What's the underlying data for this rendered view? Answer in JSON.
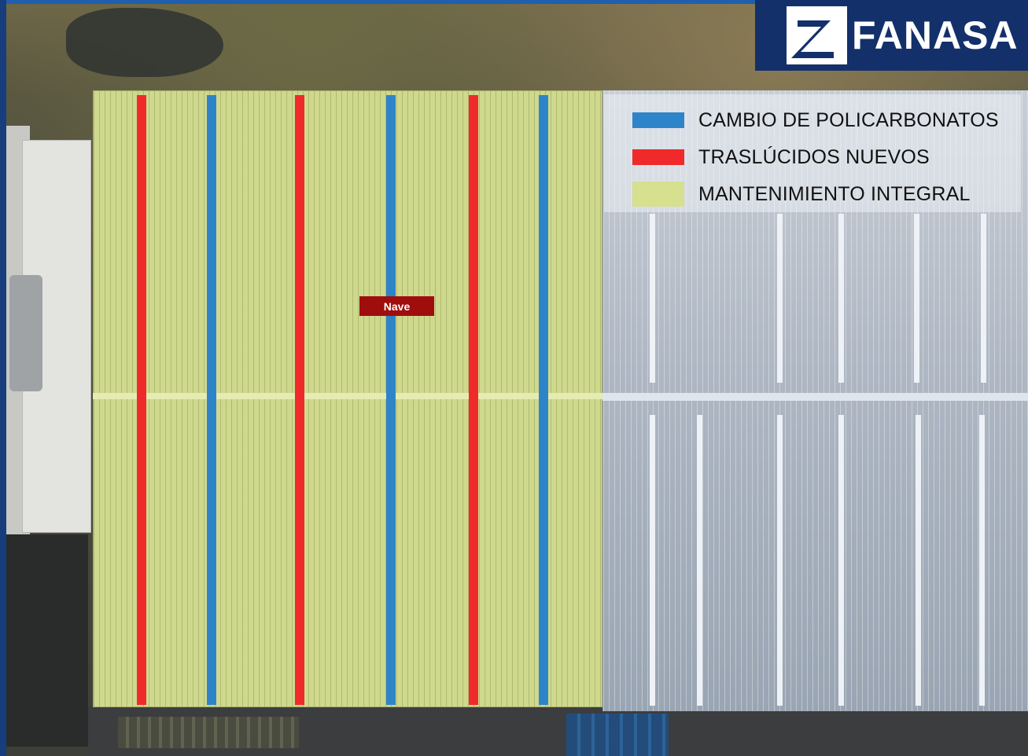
{
  "logo": {
    "text": "FANASA"
  },
  "legend": {
    "items": [
      {
        "label": "CAMBIO DE POLICARBONATOS",
        "color": "#2e84c8"
      },
      {
        "label": "TRASLÚCIDOS NUEVOS",
        "color": "#f02a2a"
      },
      {
        "label": "MANTENIMIENTO INTEGRAL",
        "color": "#d6e08e"
      }
    ]
  },
  "map_label": "Nave",
  "colors": {
    "brand_navy": "#14306a",
    "maintenance_zone": "#cfd98e",
    "label_bg": "#a00d0d"
  }
}
